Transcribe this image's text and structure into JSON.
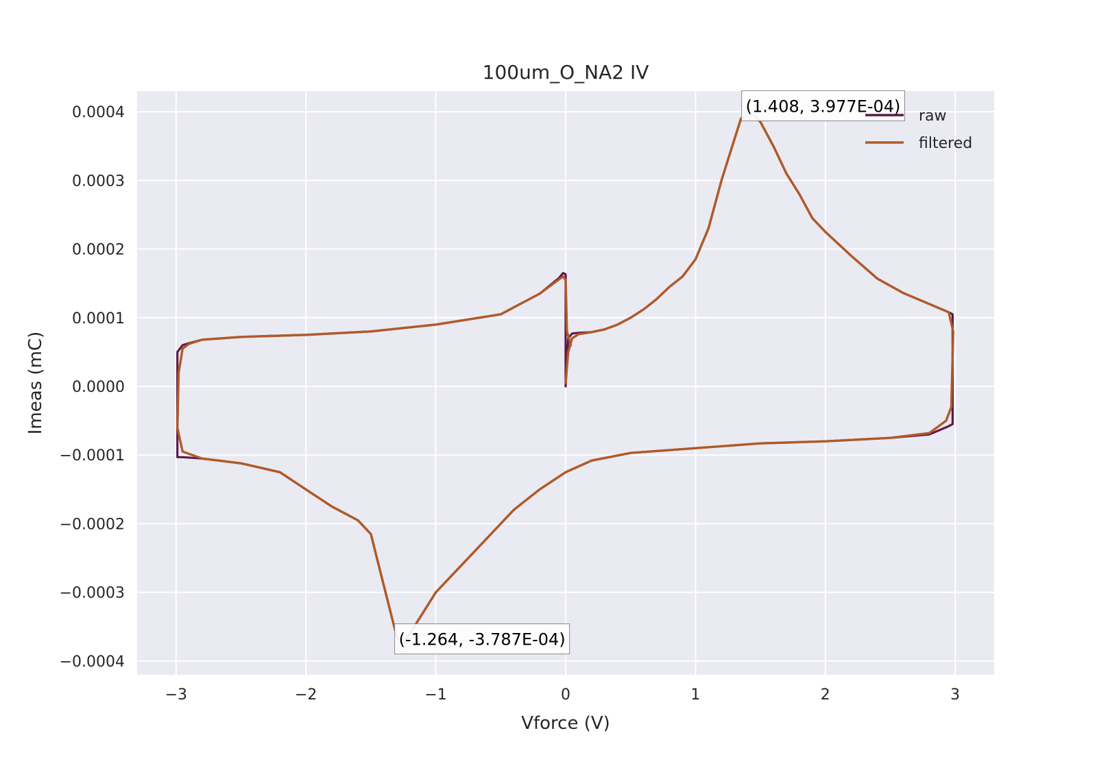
{
  "chart_data": {
    "type": "line",
    "title": "100um_O_NA2 IV",
    "xlabel": "Vforce (V)",
    "ylabel": "Imeas (mC)",
    "xlim": [
      -3.3,
      3.3
    ],
    "ylim": [
      -0.00042,
      0.00043
    ],
    "x_ticks": [
      -3,
      -2,
      -1,
      0,
      1,
      2,
      3
    ],
    "x_tick_labels": [
      "−3",
      "−2",
      "−1",
      "0",
      "1",
      "2",
      "3"
    ],
    "y_ticks": [
      0.0004,
      0.0003,
      0.0002,
      0.0001,
      0.0,
      -0.0001,
      -0.0002,
      -0.0003,
      -0.0004
    ],
    "y_tick_labels": [
      "0.0004",
      "0.0003",
      "0.0002",
      "0.0001",
      "0.0000",
      "−0.0001",
      "−0.0002",
      "−0.0003",
      "−0.0004"
    ],
    "grid": true,
    "legend_position": "top-right",
    "colors": {
      "background": "#eaeaf2",
      "grid": "#ffffff",
      "raw": "#5c1a4a",
      "filtered": "#b05a28",
      "marker": "#b9b3d6"
    },
    "series": [
      {
        "name": "raw",
        "x": [
          0.0,
          0.02,
          0.05,
          0.1,
          0.2,
          0.3,
          0.4,
          0.5,
          0.6,
          0.7,
          0.8,
          0.9,
          1.0,
          1.1,
          1.2,
          1.3,
          1.35,
          1.408,
          1.45,
          1.5,
          1.6,
          1.7,
          1.8,
          1.9,
          2.0,
          2.2,
          2.4,
          2.6,
          2.8,
          2.95,
          2.98,
          2.98,
          2.95,
          2.8,
          2.5,
          2.0,
          1.5,
          1.0,
          0.5,
          0.2,
          0.0,
          -0.2,
          -0.4,
          -0.6,
          -0.8,
          -1.0,
          -1.1,
          -1.2,
          -1.264,
          -1.3,
          -1.4,
          -1.5,
          -1.6,
          -1.8,
          -2.0,
          -2.2,
          -2.5,
          -2.8,
          -2.95,
          -2.99,
          -2.99,
          -2.95,
          -2.9,
          -2.8,
          -2.5,
          -2.0,
          -1.5,
          -1.0,
          -0.5,
          -0.2,
          -0.05,
          -0.02,
          0.0,
          0.0
        ],
        "y": [
          0.0,
          7e-05,
          7.7e-05,
          7.8e-05,
          7.9e-05,
          8.3e-05,
          9e-05,
          0.0001,
          0.000112,
          0.000127,
          0.000145,
          0.00016,
          0.000185,
          0.00023,
          0.0003,
          0.00036,
          0.00039,
          0.0003977,
          0.000395,
          0.000385,
          0.00035,
          0.00031,
          0.00028,
          0.000245,
          0.000225,
          0.00019,
          0.000157,
          0.000136,
          0.00012,
          0.000108,
          0.000105,
          -5.5e-05,
          -5.8e-05,
          -7e-05,
          -7.5e-05,
          -8e-05,
          -8.3e-05,
          -9e-05,
          -9.7e-05,
          -0.000108,
          -0.000125,
          -0.00015,
          -0.00018,
          -0.00022,
          -0.00026,
          -0.0003,
          -0.00033,
          -0.00036,
          -0.0003787,
          -0.000365,
          -0.00029,
          -0.000215,
          -0.000195,
          -0.000175,
          -0.00015,
          -0.000125,
          -0.000112,
          -0.000105,
          -0.000103,
          -0.000103,
          5e-05,
          6e-05,
          6.3e-05,
          6.8e-05,
          7.2e-05,
          7.5e-05,
          8e-05,
          9e-05,
          0.000105,
          0.000135,
          0.000158,
          0.000165,
          0.000163,
          0.0
        ]
      },
      {
        "name": "filtered",
        "x": [
          0.0,
          0.02,
          0.05,
          0.1,
          0.2,
          0.3,
          0.4,
          0.5,
          0.6,
          0.7,
          0.8,
          0.9,
          1.0,
          1.1,
          1.2,
          1.3,
          1.35,
          1.408,
          1.45,
          1.5,
          1.6,
          1.7,
          1.8,
          1.9,
          2.0,
          2.2,
          2.4,
          2.6,
          2.8,
          2.95,
          2.985,
          2.97,
          2.93,
          2.8,
          2.5,
          2.0,
          1.5,
          1.0,
          0.5,
          0.2,
          0.0,
          -0.2,
          -0.4,
          -0.6,
          -0.8,
          -1.0,
          -1.1,
          -1.2,
          -1.264,
          -1.3,
          -1.4,
          -1.5,
          -1.6,
          -1.8,
          -2.0,
          -2.2,
          -2.5,
          -2.8,
          -2.95,
          -2.99,
          -2.98,
          -2.95,
          -2.9,
          -2.8,
          -2.5,
          -2.0,
          -1.5,
          -1.0,
          -0.5,
          -0.2,
          -0.05,
          -0.02,
          0.0,
          0.01,
          0.04
        ],
        "y": [
          5e-06,
          5e-05,
          7e-05,
          7.6e-05,
          7.9e-05,
          8.3e-05,
          9e-05,
          0.0001,
          0.000112,
          0.000127,
          0.000145,
          0.00016,
          0.000185,
          0.00023,
          0.0003,
          0.00036,
          0.00039,
          0.0003977,
          0.000395,
          0.000385,
          0.00035,
          0.00031,
          0.00028,
          0.000245,
          0.000225,
          0.00019,
          0.000157,
          0.000136,
          0.00012,
          0.000108,
          8e-05,
          -3e-05,
          -5e-05,
          -6.8e-05,
          -7.5e-05,
          -8e-05,
          -8.3e-05,
          -9e-05,
          -9.7e-05,
          -0.000108,
          -0.000125,
          -0.00015,
          -0.00018,
          -0.00022,
          -0.00026,
          -0.0003,
          -0.00033,
          -0.00036,
          -0.0003787,
          -0.000365,
          -0.00029,
          -0.000215,
          -0.000195,
          -0.000175,
          -0.00015,
          -0.000125,
          -0.000112,
          -0.000105,
          -9.5e-05,
          -6e-05,
          2e-05,
          5.5e-05,
          6.2e-05,
          6.8e-05,
          7.2e-05,
          7.5e-05,
          8e-05,
          9e-05,
          0.000105,
          0.000135,
          0.000156,
          0.00016,
          0.000155,
          8e-05,
          6e-05
        ]
      }
    ],
    "annotations": [
      {
        "x": 1.408,
        "y": 0.0003977,
        "text": "(1.408, 3.977E-04)"
      },
      {
        "x": -1.264,
        "y": -0.0003787,
        "text": "(-1.264, -3.787E-04)"
      }
    ]
  }
}
